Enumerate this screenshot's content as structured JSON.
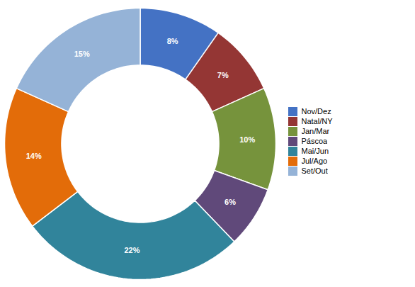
{
  "chart_data": {
    "type": "pie",
    "categories": [
      "Nov/Dez",
      "Natal/NY",
      "Jan/Mar",
      "Páscoa",
      "Mai/Jun",
      "Jul/Ago",
      "Set/Out"
    ],
    "values": [
      8,
      7,
      10,
      6,
      22,
      14,
      15
    ],
    "value_labels": [
      "8%",
      "7%",
      "10%",
      "6%",
      "22%",
      "14%",
      "15%"
    ],
    "colors": [
      "#4472C4",
      "#943634",
      "#76933C",
      "#60497A",
      "#31849B",
      "#E36C09",
      "#95B3D7"
    ],
    "data_labels": true,
    "legend": "right"
  }
}
